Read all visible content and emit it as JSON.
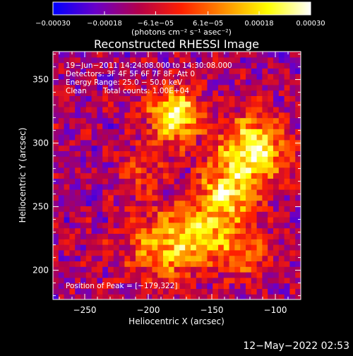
{
  "chart_data": {
    "type": "heatmap",
    "title": "Reconstructed RHESSI Image",
    "xlabel": "Heliocentric X (arcsec)",
    "ylabel": "Heliocentric Y (arcsec)",
    "xlim": [
      -275,
      -80
    ],
    "ylim": [
      177,
      372
    ],
    "x_ticks": [
      -250,
      -200,
      -150,
      -100
    ],
    "y_ticks": [
      200,
      250,
      300,
      350
    ],
    "x_tick_labels": [
      "−250",
      "−200",
      "−150",
      "−100"
    ],
    "y_tick_labels": [
      "200",
      "250",
      "300",
      "350"
    ],
    "colorbar": {
      "range": [
        -0.0003,
        0.0003
      ],
      "ticks": [
        -0.0003,
        -0.00018,
        -6.1e-05,
        6.1e-05,
        0.00018,
        0.0003
      ],
      "tick_labels": [
        "−0.00030",
        "−0.00018",
        "−6.1e−05",
        "6.1e−05",
        "0.00018",
        "0.00030"
      ],
      "units_label": "(photons cm⁻² s⁻¹ asec⁻²)",
      "colormap": "blue-purple-red-yellow-white",
      "colors": [
        "#0000ff",
        "#6a00c8",
        "#b4004a",
        "#ff2000",
        "#ff9000",
        "#ffff00",
        "#ffffff"
      ]
    },
    "sources": [
      {
        "x": -179,
        "y": 322,
        "strength": 1.0,
        "spread": 14
      },
      {
        "x": -118,
        "y": 295,
        "strength": 0.95,
        "spread": 18
      },
      {
        "x": -140,
        "y": 258,
        "strength": 0.8,
        "spread": 16
      },
      {
        "x": -190,
        "y": 220,
        "strength": 0.6,
        "spread": 20
      },
      {
        "x": -160,
        "y": 225,
        "strength": 0.55,
        "spread": 15
      },
      {
        "x": -125,
        "y": 215,
        "strength": 0.5,
        "spread": 14
      },
      {
        "x": -205,
        "y": 280,
        "strength": 0.35,
        "spread": 12
      }
    ],
    "annotations": {
      "time_range": "19−Jun−2011 14:24:08.000 to 14:30:08.000",
      "detectors": "Detectors: 3F 4F 5F 6F 7F 8F, Att 0",
      "energy_range": "Energy Range: 25.0 − 50.0 keV",
      "method": "Clean",
      "total_counts": "Total counts: 1.00E+04",
      "peak_position": "Position of Peak = [−179,322]"
    },
    "timestamp": "12−May−2022 02:53"
  }
}
